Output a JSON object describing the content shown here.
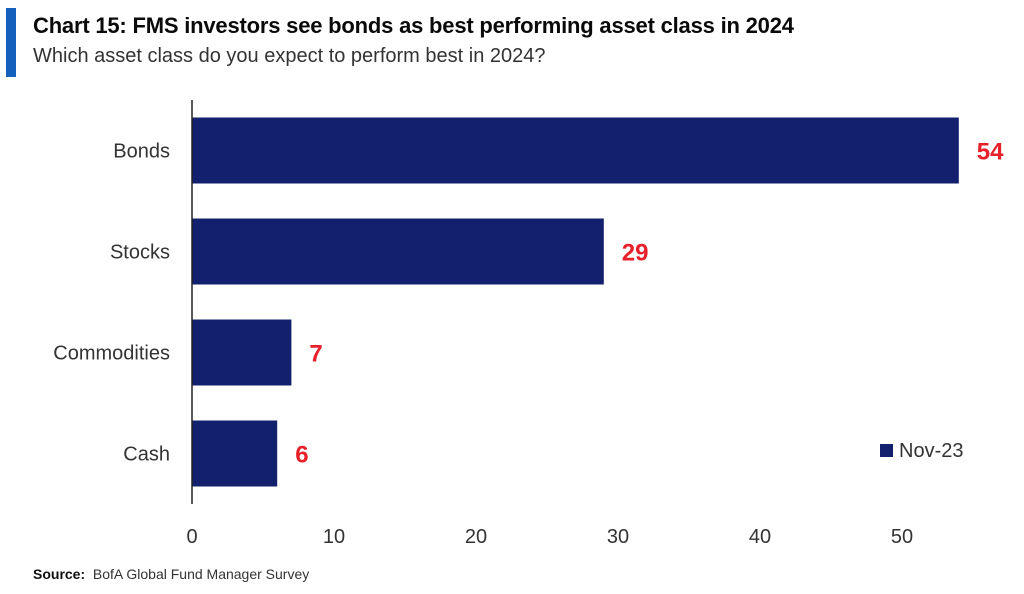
{
  "header": {
    "title": "Chart 15: FMS investors see bonds as best performing asset class in 2024",
    "subtitle": "Which asset class do you expect to perform best in 2024?",
    "source_label": "Source:",
    "source_text": "BofA Global Fund Manager Survey"
  },
  "colors": {
    "accent_bar": "#1560bd",
    "bar_fill": "#13206e",
    "value_label": "#e8202a"
  },
  "chart_data": {
    "type": "bar",
    "orientation": "horizontal",
    "title": "Chart 15: FMS investors see bonds as best performing asset class in 2024",
    "subtitle": "Which asset class do you expect to perform best in 2024?",
    "categories": [
      "Bonds",
      "Stocks",
      "Commodities",
      "Cash"
    ],
    "series": [
      {
        "name": "Nov-23",
        "values": [
          54,
          29,
          7,
          6
        ]
      }
    ],
    "data_labels": [
      "54",
      "29",
      "7",
      "6"
    ],
    "xlim": [
      0,
      55
    ],
    "x_ticks": [
      0,
      10,
      20,
      30,
      40,
      50
    ],
    "grid": false,
    "legend_position": "bottom-right"
  }
}
